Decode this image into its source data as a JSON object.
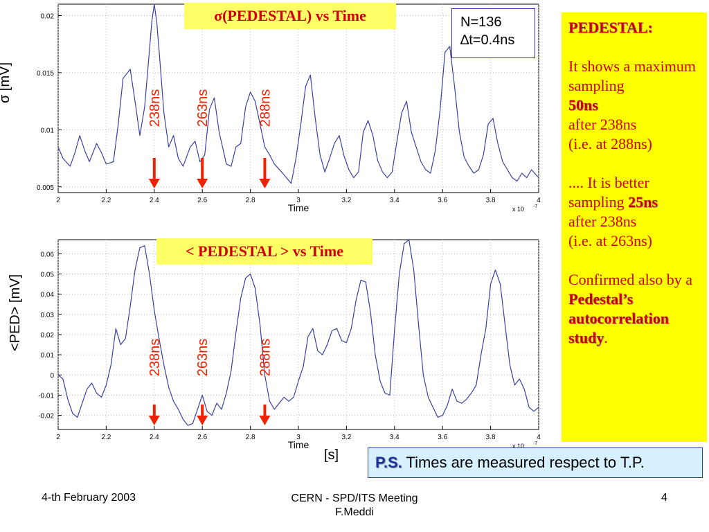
{
  "chart_data": [
    {
      "type": "line",
      "title": "σ(PEDESTAL)   vs   Time",
      "ylabel": "σ  [mV]",
      "xlabel": "Time",
      "x_scale_note": "x 10",
      "x_scale_exp": "-7",
      "xlim": [
        2,
        4
      ],
      "ylim": [
        0.0045,
        0.021
      ],
      "xticks": [
        "2",
        "2.2",
        "2.4",
        "2.6",
        "2.8",
        "3",
        "3.2",
        "3.4",
        "3.6",
        "3.8",
        "4"
      ],
      "yticks": [
        {
          "value": 0.005,
          "label": "0.005"
        },
        {
          "value": 0.01,
          "label": "0.01"
        },
        {
          "value": 0.015,
          "label": "0.015"
        },
        {
          "value": 0.02,
          "label": "0.02"
        }
      ],
      "color": "#3b3fa0",
      "series": [
        {
          "x": [
            2.0,
            2.02,
            2.05,
            2.07,
            2.09,
            2.11,
            2.13,
            2.16,
            2.18,
            2.2,
            2.23,
            2.25,
            2.27,
            2.3,
            2.32,
            2.34,
            2.36,
            2.38,
            2.39,
            2.4,
            2.41,
            2.42,
            2.44,
            2.46,
            2.48,
            2.5,
            2.52,
            2.55,
            2.57,
            2.59,
            2.61,
            2.63,
            2.65,
            2.67,
            2.7,
            2.72,
            2.74,
            2.76,
            2.78,
            2.8,
            2.82,
            2.84,
            2.86,
            2.88,
            2.9,
            2.93,
            2.95,
            2.97,
            2.99,
            3.01,
            3.03,
            3.05,
            3.07,
            3.09,
            3.11,
            3.13,
            3.15,
            3.17,
            3.19,
            3.21,
            3.23,
            3.25,
            3.27,
            3.29,
            3.31,
            3.33,
            3.35,
            3.37,
            3.39,
            3.41,
            3.43,
            3.45,
            3.47,
            3.49,
            3.51,
            3.53,
            3.55,
            3.57,
            3.59,
            3.61,
            3.63,
            3.65,
            3.67,
            3.69,
            3.71,
            3.73,
            3.75,
            3.77,
            3.79,
            3.81,
            3.83,
            3.85,
            3.87,
            3.89,
            3.91,
            3.93,
            3.95,
            3.97,
            4.0
          ],
          "y": [
            0.0085,
            0.0075,
            0.0068,
            0.008,
            0.0095,
            0.0082,
            0.0072,
            0.0088,
            0.008,
            0.007,
            0.0072,
            0.0105,
            0.0145,
            0.0153,
            0.0125,
            0.0095,
            0.012,
            0.017,
            0.0195,
            0.021,
            0.0195,
            0.017,
            0.0115,
            0.0085,
            0.0095,
            0.0075,
            0.0068,
            0.0085,
            0.009,
            0.0072,
            0.0078,
            0.0118,
            0.0128,
            0.0098,
            0.007,
            0.0068,
            0.0085,
            0.0088,
            0.012,
            0.0133,
            0.0125,
            0.0105,
            0.0085,
            0.0078,
            0.007,
            0.0063,
            0.0058,
            0.0053,
            0.0075,
            0.0105,
            0.0138,
            0.0148,
            0.011,
            0.0078,
            0.0063,
            0.0075,
            0.0088,
            0.0095,
            0.0077,
            0.0065,
            0.0058,
            0.0063,
            0.0098,
            0.0108,
            0.0095,
            0.0073,
            0.0063,
            0.0058,
            0.0063,
            0.009,
            0.0115,
            0.0125,
            0.0098,
            0.0085,
            0.0072,
            0.0065,
            0.0062,
            0.0082,
            0.0118,
            0.0168,
            0.0173,
            0.0138,
            0.0098,
            0.0076,
            0.0068,
            0.0062,
            0.0065,
            0.0078,
            0.0105,
            0.011,
            0.0088,
            0.0072,
            0.0065,
            0.0058,
            0.0055,
            0.0062,
            0.0058,
            0.0065,
            0.0058
          ]
        }
      ],
      "annotations": [
        {
          "label": "238ns",
          "x": 2.4
        },
        {
          "label": "263ns",
          "x": 2.6
        },
        {
          "label": "288ns",
          "x": 2.86
        }
      ]
    },
    {
      "type": "line",
      "title": "< PEDESTAL >   vs   Time",
      "ylabel": "<PED> [mV]",
      "xlabel": "Time",
      "x_scale_note": "x 10",
      "x_scale_exp": "-7",
      "xlim": [
        2,
        4
      ],
      "ylim": [
        -0.027,
        0.067
      ],
      "xticks": [
        "2",
        "2.2",
        "2.4",
        "2.6",
        "2.8",
        "3",
        "3.2",
        "3.4",
        "3.6",
        "3.8",
        "4"
      ],
      "yticks": [
        {
          "value": -0.02,
          "label": "-0.02"
        },
        {
          "value": -0.01,
          "label": "-0.01"
        },
        {
          "value": 0,
          "label": "0"
        },
        {
          "value": 0.01,
          "label": "0.01"
        },
        {
          "value": 0.02,
          "label": "0.02"
        },
        {
          "value": 0.03,
          "label": "0.03"
        },
        {
          "value": 0.04,
          "label": "0.04"
        },
        {
          "value": 0.05,
          "label": "0.05"
        },
        {
          "value": 0.06,
          "label": "0.06"
        }
      ],
      "color": "#3b3fa0",
      "series": [
        {
          "x": [
            2.0,
            2.02,
            2.04,
            2.06,
            2.08,
            2.1,
            2.12,
            2.14,
            2.16,
            2.18,
            2.2,
            2.22,
            2.24,
            2.26,
            2.28,
            2.3,
            2.32,
            2.34,
            2.36,
            2.38,
            2.4,
            2.42,
            2.44,
            2.46,
            2.48,
            2.5,
            2.52,
            2.54,
            2.56,
            2.58,
            2.6,
            2.62,
            2.64,
            2.66,
            2.68,
            2.7,
            2.72,
            2.74,
            2.76,
            2.78,
            2.8,
            2.82,
            2.84,
            2.86,
            2.88,
            2.9,
            2.92,
            2.94,
            2.96,
            2.98,
            3.0,
            3.02,
            3.04,
            3.06,
            3.08,
            3.1,
            3.12,
            3.14,
            3.16,
            3.18,
            3.2,
            3.22,
            3.24,
            3.26,
            3.28,
            3.3,
            3.32,
            3.34,
            3.36,
            3.38,
            3.4,
            3.42,
            3.44,
            3.46,
            3.48,
            3.5,
            3.52,
            3.54,
            3.56,
            3.58,
            3.6,
            3.62,
            3.64,
            3.66,
            3.68,
            3.7,
            3.72,
            3.74,
            3.76,
            3.78,
            3.8,
            3.82,
            3.84,
            3.86,
            3.88,
            3.9,
            3.92,
            3.94,
            3.96,
            3.98,
            4.0
          ],
          "y": [
            0.0,
            -0.002,
            -0.012,
            -0.019,
            -0.021,
            -0.014,
            -0.007,
            -0.004,
            -0.009,
            -0.011,
            -0.005,
            0.005,
            0.023,
            0.015,
            0.018,
            0.034,
            0.052,
            0.063,
            0.064,
            0.05,
            0.032,
            0.018,
            0.005,
            -0.006,
            -0.013,
            -0.017,
            -0.022,
            -0.025,
            -0.024,
            -0.017,
            -0.01,
            -0.018,
            -0.02,
            -0.014,
            -0.017,
            -0.009,
            0.002,
            0.021,
            0.038,
            0.048,
            0.05,
            0.043,
            0.025,
            0.0,
            -0.013,
            -0.017,
            -0.014,
            -0.011,
            -0.013,
            -0.011,
            -0.003,
            0.004,
            0.019,
            0.023,
            0.012,
            0.01,
            0.015,
            0.022,
            0.023,
            0.017,
            0.016,
            0.023,
            0.037,
            0.047,
            0.046,
            0.031,
            0.01,
            -0.003,
            -0.009,
            -0.01,
            0.022,
            0.05,
            0.065,
            0.067,
            0.052,
            0.025,
            0.0,
            -0.011,
            -0.016,
            -0.021,
            -0.02,
            -0.015,
            -0.007,
            -0.013,
            -0.014,
            -0.012,
            -0.009,
            -0.005,
            0.01,
            0.023,
            0.045,
            0.052,
            0.045,
            0.025,
            0.005,
            -0.005,
            -0.002,
            -0.007,
            -0.016,
            -0.018,
            -0.016
          ]
        }
      ],
      "annotations": [
        {
          "label": "238ns",
          "x": 2.4
        },
        {
          "label": "263ns",
          "x": 2.6
        },
        {
          "label": "288ns",
          "x": 2.86
        }
      ]
    }
  ],
  "stats_box": {
    "line1": "N=136",
    "line2": "∆t=0.4ns"
  },
  "x_unit": "[s]",
  "sidebar": {
    "heading": "PEDESTAL:",
    "p1_pre": "It shows a maximum sampling",
    "p1_bold": "50ns",
    "p1_after": "after 238ns",
    "p1_ie": "(i.e. at 288ns)",
    "p2_pre": ".... It is better sampling",
    "p2_bold": "25ns",
    "p2_after": "after 238ns",
    "p2_ie": "(i.e. at 263ns)",
    "p3_pre": "Confirmed also by a",
    "p3_bold": "Pedestal’s autocorrelation study",
    "p3_end": "."
  },
  "ps": {
    "label": "P.S.",
    "text": "Times are measured respect to T.P."
  },
  "footer": {
    "date": "4-th February 2003",
    "meeting": "CERN - SPD/ITS Meeting",
    "author": "F.Meddi",
    "page": "4"
  },
  "colors": {
    "trace": "#3b3fa0",
    "arrow": "#ee2200",
    "annotation": "#ee2200",
    "title_bg": "#ffff66",
    "sidebar_bg": "#ffff00",
    "sidebar_text": "#cc0000",
    "ps_bg": "#d6f0ff"
  }
}
